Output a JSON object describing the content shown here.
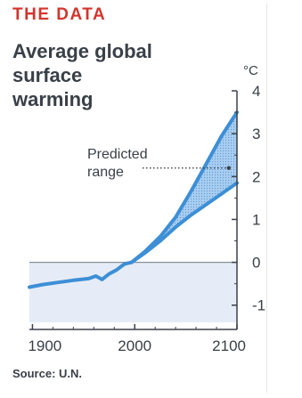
{
  "header": {
    "kicker": "THE DATA",
    "title_lines": [
      "Average global",
      "surface",
      "warming"
    ]
  },
  "footer": {
    "source": "Source: U.N."
  },
  "colors": {
    "kicker": "#d2352c",
    "line": "#3d8fd6",
    "band_fill": "#a9cdef",
    "below_zero_fill": "#e6ecf7",
    "axis": "#3a4048",
    "text": "#3a4048"
  },
  "chart_data": {
    "type": "line",
    "title": "Average global surface warming",
    "xlabel": "",
    "ylabel": "°C",
    "xlim": [
      1897,
      2100
    ],
    "ylim": [
      -1.4,
      4.0
    ],
    "x_ticks": [
      1900,
      2000,
      2100
    ],
    "x_tick_labels": [
      "1900",
      "2000",
      "2100"
    ],
    "y_ticks": [
      4,
      3,
      2,
      1,
      0,
      -1
    ],
    "y_tick_labels": [
      "4",
      "3",
      "2",
      "1",
      "0",
      "-1"
    ],
    "y_axis_position": "right",
    "grid": false,
    "zero_line": true,
    "series": [
      {
        "role": "historical",
        "x": [
          1897,
          1910,
          1925,
          1940,
          1955,
          1962,
          1968,
          1975,
          1982,
          1990,
          1997
        ],
        "values": [
          -0.58,
          -0.52,
          -0.47,
          -0.42,
          -0.38,
          -0.32,
          -0.4,
          -0.27,
          -0.18,
          -0.04,
          0.0
        ]
      },
      {
        "role": "predicted-upper",
        "x": [
          1997,
          2010,
          2025,
          2040,
          2055,
          2070,
          2085,
          2100
        ],
        "values": [
          0.0,
          0.25,
          0.6,
          1.05,
          1.65,
          2.3,
          2.95,
          3.5
        ]
      },
      {
        "role": "predicted-lower",
        "x": [
          1997,
          2010,
          2025,
          2040,
          2055,
          2070,
          2085,
          2100
        ],
        "values": [
          0.0,
          0.22,
          0.5,
          0.82,
          1.1,
          1.35,
          1.6,
          1.85
        ]
      }
    ],
    "annotation": {
      "lines": [
        "Predicted",
        "range"
      ],
      "target_x": 2092,
      "target_y": 2.2
    }
  }
}
